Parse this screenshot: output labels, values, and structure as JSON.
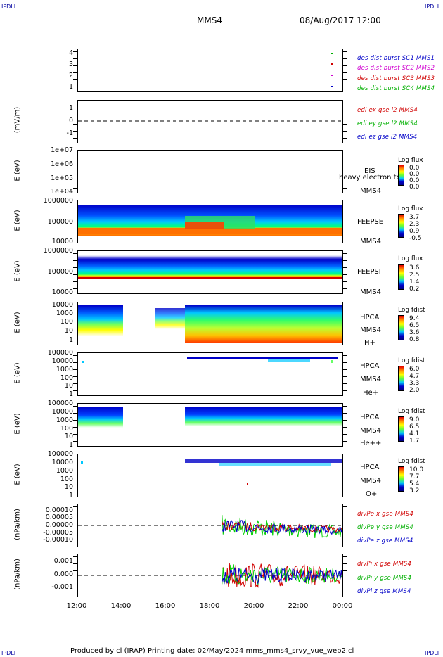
{
  "corners": {
    "top_left": "IPDLI",
    "top_right": "IPDLI",
    "bottom_left": "IPDLI",
    "bottom_right": "IPDLI"
  },
  "header": {
    "spacecraft": "MMS4",
    "datetime": "08/Aug/2017 12:00"
  },
  "footer": {
    "text": "Produced by cl (IRAP)   Printing date: 02/May/2024   mms_mms4_srvy_vue_web2.cl"
  },
  "x_axis": {
    "ticks": [
      "12:00",
      "14:00",
      "16:00",
      "18:00",
      "20:00",
      "22:00",
      "00:00"
    ]
  },
  "panels": [
    {
      "id": "burst",
      "ylabel": "",
      "yticks": [
        "4",
        "3",
        "2",
        "1"
      ],
      "legend": [
        {
          "text": "des dist burst SC1 MMS1",
          "color": "#0000c8"
        },
        {
          "text": "des dist burst SC2 MMS2",
          "color": "#d000d0"
        },
        {
          "text": "des dist burst SC3 MMS3",
          "color": "#d00000"
        },
        {
          "text": "des dist burst SC4 MMS4",
          "color": "#00b000"
        }
      ]
    },
    {
      "id": "edi",
      "ylabel": "(mV/m)",
      "yticks": [
        "1",
        "0",
        "-1"
      ],
      "legend": [
        {
          "text": "edi ex gse l2 MMS4",
          "color": "#d00000"
        },
        {
          "text": "edi ey gse l2 MMS4",
          "color": "#00b000"
        },
        {
          "text": "edi ez gse l2 MMS4",
          "color": "#0000c8"
        }
      ]
    },
    {
      "id": "eis",
      "ylabel": "E (eV)",
      "yticks": [
        "1e+07",
        "1e+06",
        "1e+05",
        "1e+04"
      ],
      "side": [
        "EIS",
        "heavy electron to",
        "MMS4"
      ],
      "cb_title": "Log flux",
      "cb_values": [
        "0.0",
        "0.0",
        "0.0",
        "0.0"
      ]
    },
    {
      "id": "feepse",
      "ylabel": "E (eV)",
      "yticks": [
        "1000000",
        "100000",
        "10000"
      ],
      "side": [
        "FEEPSE",
        "MMS4"
      ],
      "cb_title": "Log flux",
      "cb_values": [
        "3.7",
        "2.3",
        "0.9",
        "-0.5"
      ]
    },
    {
      "id": "feepsi",
      "ylabel": "E (eV)",
      "yticks": [
        "1000000",
        "100000",
        "10000"
      ],
      "side": [
        "FEEPSI",
        "MMS4"
      ],
      "cb_title": "Log flux",
      "cb_values": [
        "3.6",
        "2.5",
        "1.4",
        "0.2"
      ]
    },
    {
      "id": "hpca_h",
      "ylabel": "E (eV)",
      "yticks": [
        "10000",
        "1000",
        "100",
        "10",
        "1"
      ],
      "side": [
        "HPCA",
        "MMS4",
        "H+"
      ],
      "cb_title": "Log fdist",
      "cb_values": [
        "9.4",
        "6.5",
        "3.6",
        "0.8"
      ]
    },
    {
      "id": "hpca_he",
      "ylabel": "E (eV)",
      "yticks": [
        "100000",
        "10000",
        "1000",
        "100",
        "10",
        "1"
      ],
      "side": [
        "HPCA",
        "MMS4",
        "He+"
      ],
      "cb_title": "Log fdist",
      "cb_values": [
        "6.0",
        "4.7",
        "3.3",
        "2.0"
      ]
    },
    {
      "id": "hpca_hepp",
      "ylabel": "E (eV)",
      "yticks": [
        "100000",
        "10000",
        "1000",
        "100",
        "10",
        "1"
      ],
      "side": [
        "HPCA",
        "MMS4",
        "He++"
      ],
      "cb_title": "Log fdist",
      "cb_values": [
        "9.0",
        "6.5",
        "4.1",
        "1.7"
      ]
    },
    {
      "id": "hpca_o",
      "ylabel": "E (eV)",
      "yticks": [
        "100000",
        "10000",
        "1000",
        "100",
        "10",
        "1"
      ],
      "side": [
        "HPCA",
        "MMS4",
        "O+"
      ],
      "cb_title": "Log fdist",
      "cb_values": [
        "10.0",
        "7.7",
        "5.4",
        "3.2"
      ]
    },
    {
      "id": "divpe",
      "ylabel": "(nPa/km)",
      "yticks": [
        "0.00010",
        "0.00005",
        "0.00000",
        "-0.00005",
        "-0.00010"
      ],
      "legend": [
        {
          "text": "divPe x gse MMS4",
          "color": "#d00000"
        },
        {
          "text": "divPe y gse MMS4",
          "color": "#00b000"
        },
        {
          "text": "divPe z gse MMS4",
          "color": "#0000c8"
        }
      ]
    },
    {
      "id": "divpi",
      "ylabel": "(nPa/km)",
      "yticks": [
        "0.001",
        "0.000",
        "-0.001"
      ],
      "legend": [
        {
          "text": "divPi x gse MMS4",
          "color": "#d00000"
        },
        {
          "text": "divPi y gse MMS4",
          "color": "#00b000"
        },
        {
          "text": "divPi z gse MMS4",
          "color": "#0000c8"
        }
      ]
    }
  ],
  "chart_data": {
    "type": "heatmap",
    "title": "MMS4",
    "x_range": [
      "12:00",
      "00:00"
    ],
    "burst_markers": [
      {
        "sc": 4,
        "time": "23:30"
      },
      {
        "sc": 3,
        "time": "23:30"
      },
      {
        "sc": 2,
        "time": "23:30"
      },
      {
        "sc": 1,
        "time": "23:30"
      }
    ],
    "data_gaps": {
      "hpca_h": [
        "14:10",
        "16:00"
      ],
      "hpca_hepp": [
        "14:10",
        "16:50"
      ]
    },
    "divPe_start": "18:30",
    "divPi_start": "18:30",
    "feepse_injection": "16:50",
    "divPe_range": [
      -0.00015,
      0.00015
    ],
    "divPi_range": [
      -0.0015,
      0.0015
    ]
  }
}
